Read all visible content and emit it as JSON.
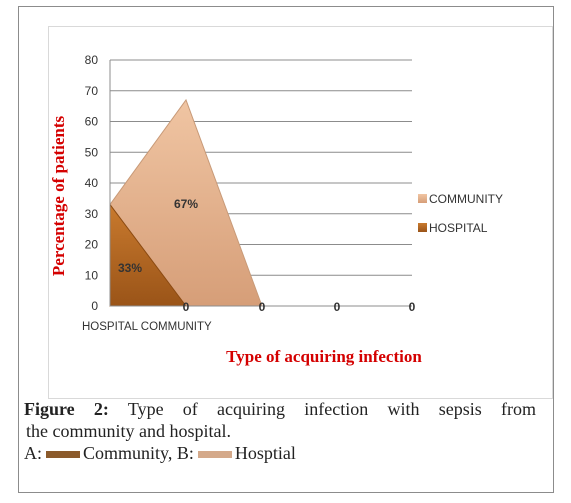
{
  "chart_data": {
    "type": "area",
    "categories": [
      "HOSPITAL",
      "COMMUNITY",
      "",
      "",
      ""
    ],
    "series": [
      {
        "name": "COMMUNITY",
        "values": [
          33,
          67,
          0,
          0,
          0
        ],
        "color": "#e2b08e"
      },
      {
        "name": "HOSPITAL",
        "values": [
          33,
          0,
          0,
          0,
          0
        ],
        "color": "#b5651d"
      }
    ],
    "data_labels": [
      {
        "series": "COMMUNITY",
        "text": "67%"
      },
      {
        "series": "HOSPITAL",
        "text": "33%"
      },
      {
        "text": "0"
      },
      {
        "text": "0"
      },
      {
        "text": "0"
      },
      {
        "text": "0"
      }
    ],
    "xlabel": "Type of acquiring infection",
    "ylabel": "Percentage of patients",
    "ylim": [
      0,
      80
    ],
    "yticks": [
      "0",
      "10",
      "20",
      "30",
      "40",
      "50",
      "60",
      "70",
      "80"
    ],
    "grid": true,
    "legend_position": "right"
  },
  "caption": {
    "figure_label": "Figure 2:",
    "line1_text": " Type of acquiring infection with sepsis from",
    "line2_text": "the community and hospital.",
    "legend_a_prefix": "A:",
    "legend_a_text": "Community,",
    "legend_b_prefix": "B:",
    "legend_b_text": "Hosptial",
    "swatch_a_color": "#8b5a2b",
    "swatch_b_color": "#d4a98a"
  }
}
